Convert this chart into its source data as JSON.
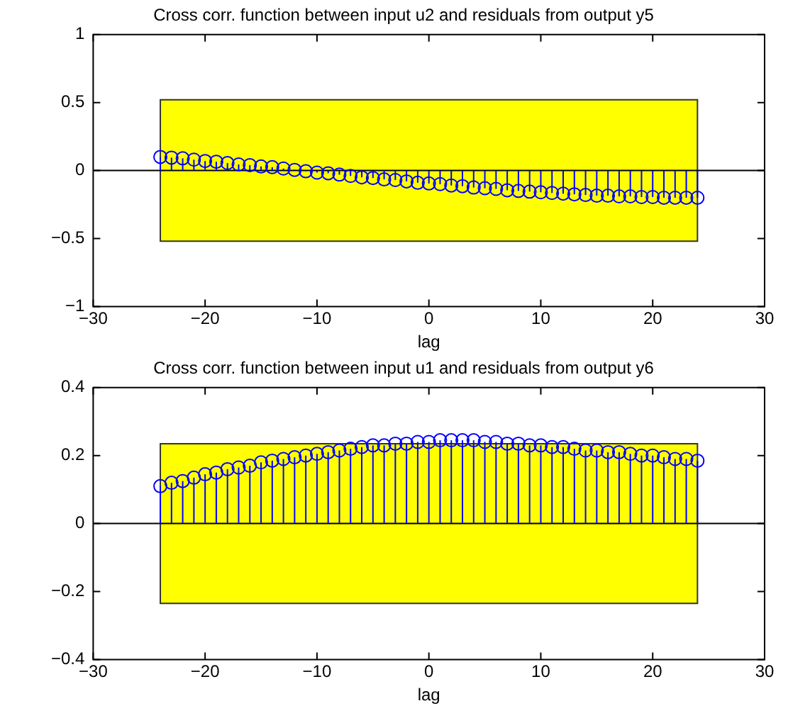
{
  "chart_data": [
    {
      "type": "lollipop",
      "title": "Cross corr. function between input u2 and residuals from output y5",
      "xlabel": "lag",
      "x": [
        -24,
        -23,
        -22,
        -21,
        -20,
        -19,
        -18,
        -17,
        -16,
        -15,
        -14,
        -13,
        -12,
        -11,
        -10,
        -9,
        -8,
        -7,
        -6,
        -5,
        -4,
        -3,
        -2,
        -1,
        0,
        1,
        2,
        3,
        4,
        5,
        6,
        7,
        8,
        9,
        10,
        11,
        12,
        13,
        14,
        15,
        16,
        17,
        18,
        19,
        20,
        21,
        22,
        23,
        24
      ],
      "values": [
        0.1,
        0.095,
        0.09,
        0.08,
        0.07,
        0.065,
        0.055,
        0.045,
        0.04,
        0.03,
        0.025,
        0.015,
        0.005,
        -0.005,
        -0.015,
        -0.02,
        -0.03,
        -0.04,
        -0.05,
        -0.055,
        -0.065,
        -0.07,
        -0.08,
        -0.09,
        -0.095,
        -0.1,
        -0.11,
        -0.115,
        -0.125,
        -0.13,
        -0.135,
        -0.145,
        -0.15,
        -0.155,
        -0.16,
        -0.165,
        -0.17,
        -0.175,
        -0.18,
        -0.185,
        -0.185,
        -0.19,
        -0.19,
        -0.195,
        -0.195,
        -0.2,
        -0.2,
        -0.2,
        -0.2
      ],
      "color": "#0000ff",
      "marker": "circle",
      "xlim": [
        -30,
        30
      ],
      "xticks": [
        {
          "value": -30,
          "label": "−30"
        },
        {
          "value": -20,
          "label": "−20"
        },
        {
          "value": -10,
          "label": "−10"
        },
        0,
        10,
        20,
        30
      ],
      "ylim": [
        -1,
        1
      ],
      "yticks": [
        {
          "value": -1,
          "label": "−1"
        },
        {
          "value": -0.5,
          "label": "−0.5"
        },
        0,
        0.5,
        1
      ],
      "bands": [
        {
          "axis": "y",
          "from": -0.52,
          "to": 0.52,
          "color": "#ffff00"
        }
      ],
      "ref_lines": [
        {
          "axis": "y",
          "value": 0,
          "color": "#000000"
        }
      ],
      "grid": false,
      "legend": false
    },
    {
      "type": "lollipop",
      "title": "Cross corr. function between input u1 and residuals from output y6",
      "xlabel": "lag",
      "x": [
        -24,
        -23,
        -22,
        -21,
        -20,
        -19,
        -18,
        -17,
        -16,
        -15,
        -14,
        -13,
        -12,
        -11,
        -10,
        -9,
        -8,
        -7,
        -6,
        -5,
        -4,
        -3,
        -2,
        -1,
        0,
        1,
        2,
        3,
        4,
        5,
        6,
        7,
        8,
        9,
        10,
        11,
        12,
        13,
        14,
        15,
        16,
        17,
        18,
        19,
        20,
        21,
        22,
        23,
        24
      ],
      "values": [
        0.11,
        0.12,
        0.125,
        0.135,
        0.145,
        0.15,
        0.16,
        0.165,
        0.17,
        0.18,
        0.185,
        0.19,
        0.195,
        0.2,
        0.205,
        0.21,
        0.215,
        0.22,
        0.225,
        0.23,
        0.23,
        0.235,
        0.235,
        0.24,
        0.24,
        0.245,
        0.245,
        0.245,
        0.245,
        0.24,
        0.24,
        0.235,
        0.235,
        0.23,
        0.23,
        0.225,
        0.225,
        0.22,
        0.215,
        0.215,
        0.21,
        0.21,
        0.205,
        0.2,
        0.2,
        0.195,
        0.19,
        0.19,
        0.185
      ],
      "color": "#0000ff",
      "marker": "circle",
      "xlim": [
        -30,
        30
      ],
      "xticks": [
        {
          "value": -30,
          "label": "−30"
        },
        {
          "value": -20,
          "label": "−20"
        },
        {
          "value": -10,
          "label": "−10"
        },
        0,
        10,
        20,
        30
      ],
      "ylim": [
        -0.4,
        0.4
      ],
      "yticks": [
        {
          "value": -0.4,
          "label": "−0.4"
        },
        {
          "value": -0.2,
          "label": "−0.2"
        },
        0,
        0.2,
        0.4
      ],
      "bands": [
        {
          "axis": "y",
          "from": -0.235,
          "to": 0.235,
          "color": "#ffff00"
        }
      ],
      "ref_lines": [
        {
          "axis": "y",
          "value": 0,
          "color": "#000000"
        }
      ],
      "grid": false,
      "legend": false
    }
  ]
}
